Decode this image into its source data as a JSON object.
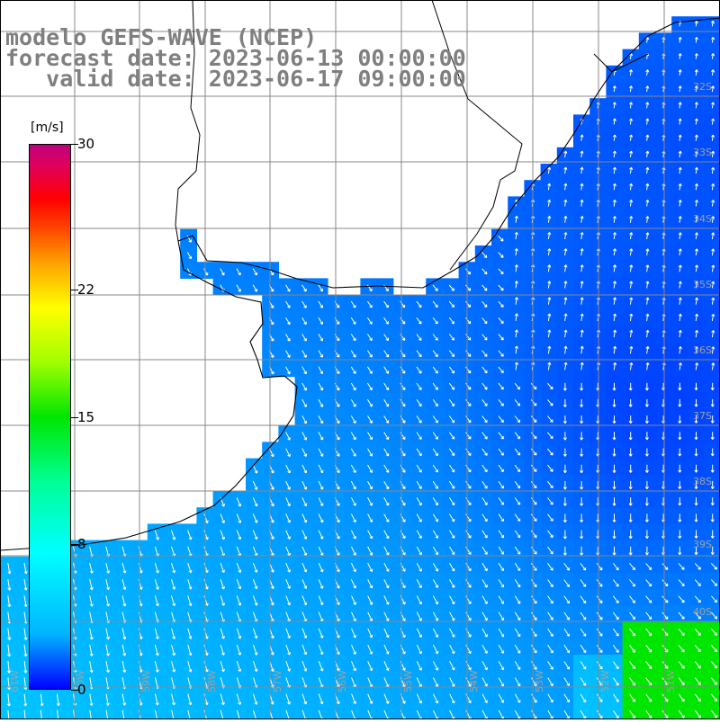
{
  "header": {
    "model": "modelo GEFS-WAVE (NCEP)",
    "forecast": "forecast date: 2023-06-13 00:00:00",
    "valid": "valid date: 2023-06-17 09:00:00"
  },
  "colorbar": {
    "units": "[m/s]",
    "ticks": [
      "30",
      "22",
      "15",
      "8",
      "0"
    ],
    "tick_values": [
      30,
      22,
      15,
      8,
      0
    ],
    "min": 0,
    "max": 30
  },
  "map": {
    "lat_labels": [
      "32S",
      "33S",
      "34S",
      "35S",
      "36S",
      "37S",
      "38S",
      "39S",
      "40S"
    ],
    "lon_labels": [
      "61W",
      "60W",
      "59W",
      "58W",
      "57W",
      "56W",
      "55W",
      "54W",
      "53W",
      "52W",
      "51W"
    ],
    "colors": {
      "ocean_low": "#0050ff",
      "ocean_mid": "#0088ff",
      "ocean_high": "#00d8ff",
      "strong": "#00e600",
      "land": "#ffffff",
      "grid": "#888888",
      "coast": "#000000",
      "arrow": "#ffffff"
    }
  }
}
